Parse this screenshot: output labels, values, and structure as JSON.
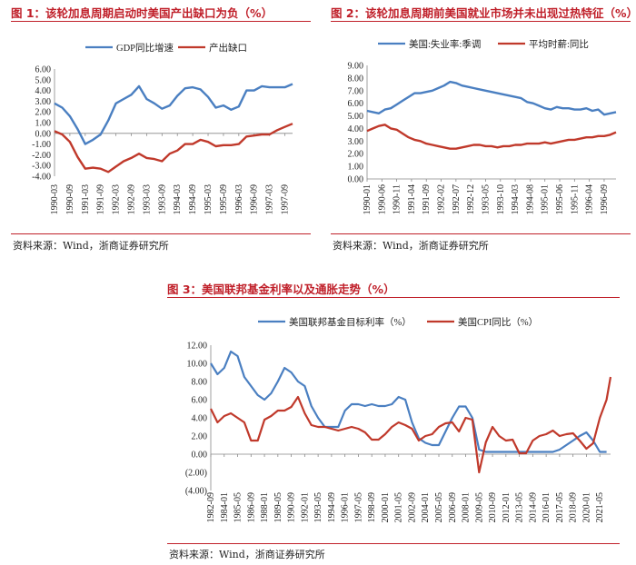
{
  "colors": {
    "accent_red": "#c0202a",
    "series_blue": "#4a7fc1",
    "series_red": "#c0392b"
  },
  "charts": [
    {
      "label": "图 1：该轮加息周期启动时美国产出缺口为负（%）",
      "source": "资料来源：Wind，浙商证券研究所"
    },
    {
      "label": "图 2：该轮加息周期前美国就业市场并未出现过热特征（%）",
      "source": "资料来源：Wind，浙商证券研究所"
    },
    {
      "label": "图 3：美国联邦基金利率以及通胀走势（%）",
      "source": "资料来源：Wind，浙商证券研究所"
    }
  ],
  "chart_data": [
    {
      "type": "line",
      "title": "图 1：该轮加息周期启动时美国产出缺口为负（%）",
      "categories": [
        "1990-03",
        "1990-09",
        "1991-03",
        "1991-09",
        "1992-03",
        "1992-09",
        "1993-03",
        "1993-09",
        "1994-03",
        "1994-09",
        "1995-03",
        "1995-09",
        "1996-03",
        "1996-09",
        "1997-03",
        "1997-09"
      ],
      "ylim": [
        -4,
        6
      ],
      "ytick_labels": [
        "6.00",
        "5.00",
        "4.00",
        "3.00",
        "2.00",
        "1.00",
        "0.00",
        "-1.00",
        "-2.00",
        "-3.00",
        "-4.00"
      ],
      "series": [
        {
          "name": "GDP同比增速",
          "color": "#4a7fc1",
          "x": [
            0,
            0.5,
            1,
            1.5,
            2,
            2.5,
            3,
            3.5,
            4,
            4.5,
            5,
            5.5,
            6,
            6.5,
            7,
            7.5,
            8,
            8.5,
            9,
            9.5,
            10,
            10.5,
            11,
            11.5,
            12,
            12.5,
            13,
            13.5,
            14,
            14.5,
            15,
            15.5
          ],
          "values": [
            2.8,
            2.4,
            1.6,
            0.4,
            -1.0,
            -0.6,
            -0.1,
            1.2,
            2.8,
            3.2,
            3.6,
            4.4,
            3.2,
            2.8,
            2.3,
            2.6,
            3.5,
            4.2,
            4.3,
            4.1,
            3.4,
            2.4,
            2.6,
            2.2,
            2.5,
            4.0,
            4.0,
            4.4,
            4.3,
            4.3,
            4.3,
            4.6
          ]
        },
        {
          "name": "产出缺口",
          "color": "#c0392b",
          "x": [
            0,
            0.5,
            1,
            1.5,
            2,
            2.5,
            3,
            3.5,
            4,
            4.5,
            5,
            5.5,
            6,
            6.5,
            7,
            7.5,
            8,
            8.5,
            9,
            9.5,
            10,
            10.5,
            11,
            11.5,
            12,
            12.5,
            13,
            13.5,
            14,
            14.5,
            15,
            15.5
          ],
          "values": [
            0.2,
            -0.1,
            -0.8,
            -2.2,
            -3.3,
            -3.2,
            -3.3,
            -3.6,
            -3.1,
            -2.6,
            -2.3,
            -1.9,
            -2.3,
            -2.4,
            -2.6,
            -1.9,
            -1.6,
            -1.0,
            -1.0,
            -0.6,
            -0.8,
            -1.2,
            -1.1,
            -1.1,
            -1.0,
            -0.3,
            -0.2,
            -0.1,
            -0.1,
            0.3,
            0.6,
            0.9
          ]
        }
      ]
    },
    {
      "type": "line",
      "title": "图 2：该轮加息周期前美国就业市场并未出现过热特征（%）",
      "categories": [
        "1990-01",
        "1990-06",
        "1990-11",
        "1991-04",
        "1991-09",
        "1992-02",
        "1992-07",
        "1992-12",
        "1993-05",
        "1993-10",
        "1994-03",
        "1994-08",
        "1995-01",
        "1995-06",
        "1995-11",
        "1996-04",
        "1996-09"
      ],
      "ylim": [
        0,
        9
      ],
      "ytick_labels": [
        "9.00",
        "8.00",
        "7.00",
        "6.00",
        "5.00",
        "4.00",
        "3.00",
        "2.00",
        "1.00",
        "0.00"
      ],
      "series": [
        {
          "name": "美国:失业率:季调",
          "color": "#4a7fc1",
          "x": [
            0,
            0.4,
            0.8,
            1.2,
            1.6,
            2,
            2.4,
            2.8,
            3.2,
            3.6,
            4,
            4.4,
            4.8,
            5.2,
            5.6,
            6,
            6.4,
            6.8,
            7.2,
            7.6,
            8,
            8.4,
            8.8,
            9.2,
            9.6,
            10,
            10.4,
            10.8,
            11.2,
            11.6,
            12,
            12.4,
            12.8,
            13.2,
            13.6,
            14,
            14.4,
            14.8,
            15.2,
            15.6,
            16,
            16.4,
            16.8
          ],
          "values": [
            5.4,
            5.3,
            5.2,
            5.5,
            5.6,
            5.9,
            6.2,
            6.5,
            6.8,
            6.8,
            6.9,
            7.0,
            7.2,
            7.4,
            7.7,
            7.6,
            7.4,
            7.3,
            7.2,
            7.1,
            7.0,
            6.9,
            6.8,
            6.7,
            6.6,
            6.5,
            6.4,
            6.1,
            6.0,
            5.8,
            5.6,
            5.5,
            5.7,
            5.6,
            5.6,
            5.5,
            5.5,
            5.6,
            5.4,
            5.5,
            5.1,
            5.2,
            5.3
          ]
        },
        {
          "name": "平均时薪:同比",
          "color": "#c0392b",
          "x": [
            0,
            0.4,
            0.8,
            1.2,
            1.6,
            2,
            2.4,
            2.8,
            3.2,
            3.6,
            4,
            4.4,
            4.8,
            5.2,
            5.6,
            6,
            6.4,
            6.8,
            7.2,
            7.6,
            8,
            8.4,
            8.8,
            9.2,
            9.6,
            10,
            10.4,
            10.8,
            11.2,
            11.6,
            12,
            12.4,
            12.8,
            13.2,
            13.6,
            14,
            14.4,
            14.8,
            15.2,
            15.6,
            16,
            16.4,
            16.8
          ],
          "values": [
            3.8,
            4.0,
            4.2,
            4.3,
            4.0,
            3.9,
            3.6,
            3.3,
            3.1,
            3.0,
            2.8,
            2.7,
            2.6,
            2.5,
            2.4,
            2.4,
            2.5,
            2.6,
            2.7,
            2.7,
            2.6,
            2.6,
            2.5,
            2.6,
            2.6,
            2.7,
            2.7,
            2.8,
            2.8,
            2.8,
            2.9,
            2.8,
            2.9,
            3.0,
            3.1,
            3.1,
            3.2,
            3.3,
            3.3,
            3.4,
            3.4,
            3.5,
            3.7
          ]
        }
      ]
    },
    {
      "type": "line",
      "title": "图 3：美国联邦基金利率以及通胀走势（%）",
      "categories": [
        "1982-09",
        "1984-01",
        "1985-05",
        "1986-09",
        "1988-01",
        "1989-05",
        "1990-09",
        "1992-01",
        "1993-05",
        "1994-09",
        "1996-01",
        "1997-05",
        "1998-09",
        "2000-01",
        "2001-05",
        "2002-09",
        "2004-01",
        "2005-05",
        "2006-09",
        "2008-01",
        "2009-05",
        "2010-09",
        "2012-01",
        "2013-05",
        "2014-09",
        "2016-01",
        "2017-05",
        "2018-09",
        "2020-01",
        "2021-05"
      ],
      "ylim": [
        -4,
        12
      ],
      "ytick_labels": [
        "12.00",
        "10.00",
        "8.00",
        "6.00",
        "4.00",
        "2.00",
        "0.00",
        "(2.00)",
        "(4.00)"
      ],
      "series": [
        {
          "name": "美国联邦基金目标利率（%）",
          "color": "#4a7fc1",
          "x": [
            0,
            0.5,
            1,
            1.5,
            2,
            2.5,
            3,
            3.5,
            4,
            4.5,
            5,
            5.5,
            6,
            6.5,
            7,
            7.5,
            8,
            8.5,
            9,
            9.5,
            10,
            10.5,
            11,
            11.5,
            12,
            12.5,
            13,
            13.5,
            14,
            14.5,
            15,
            15.5,
            16,
            16.5,
            17,
            17.5,
            18,
            18.5,
            19,
            19.5,
            20,
            20.5,
            21,
            21.5,
            22,
            22.5,
            23,
            23.5,
            24,
            24.5,
            25,
            25.5,
            26,
            26.5,
            27,
            27.5,
            28,
            28.5,
            29,
            29.5
          ],
          "values": [
            10.0,
            8.8,
            9.5,
            11.3,
            10.8,
            8.5,
            7.5,
            6.5,
            6.0,
            6.7,
            8.0,
            9.5,
            9.0,
            8.0,
            7.5,
            5.3,
            4.0,
            3.0,
            3.0,
            3.0,
            4.8,
            5.5,
            5.5,
            5.3,
            5.5,
            5.3,
            5.3,
            5.5,
            6.3,
            6.0,
            3.5,
            1.75,
            1.25,
            1.0,
            1.0,
            2.5,
            4.0,
            5.25,
            5.25,
            4.0,
            0.5,
            0.25,
            0.25,
            0.25,
            0.25,
            0.25,
            0.25,
            0.25,
            0.25,
            0.25,
            0.25,
            0.25,
            0.5,
            1.0,
            1.5,
            2.0,
            2.4,
            1.5,
            0.25,
            0.25
          ]
        },
        {
          "name": "美国CPI同比（%）",
          "color": "#c0392b",
          "x": [
            0,
            0.5,
            1,
            1.5,
            2,
            2.5,
            3,
            3.5,
            4,
            4.5,
            5,
            5.5,
            6,
            6.5,
            7,
            7.5,
            8,
            8.5,
            9,
            9.5,
            10,
            10.5,
            11,
            11.5,
            12,
            12.5,
            13,
            13.5,
            14,
            14.5,
            15,
            15.5,
            16,
            16.5,
            17,
            17.5,
            18,
            18.5,
            19,
            19.5,
            20,
            20.5,
            21,
            21.5,
            22,
            22.5,
            23,
            23.5,
            24,
            24.5,
            25,
            25.5,
            26,
            26.5,
            27,
            27.5,
            28,
            28.5,
            29,
            29.5,
            29.8
          ],
          "values": [
            5.0,
            3.5,
            4.2,
            4.5,
            4.0,
            3.5,
            1.5,
            1.5,
            3.8,
            4.2,
            4.8,
            4.8,
            5.2,
            6.3,
            4.5,
            3.2,
            3.0,
            3.0,
            2.8,
            2.6,
            2.8,
            3.0,
            2.8,
            2.4,
            1.6,
            1.6,
            2.2,
            3.0,
            3.5,
            3.2,
            2.8,
            1.5,
            2.0,
            2.2,
            3.0,
            3.4,
            3.5,
            2.5,
            4.0,
            3.8,
            -2.0,
            1.3,
            3.0,
            2.0,
            1.5,
            1.6,
            0.1,
            0.1,
            1.5,
            2.0,
            2.2,
            2.6,
            2.0,
            2.2,
            2.3,
            1.5,
            0.6,
            1.2,
            4.0,
            6.0,
            8.5
          ]
        }
      ]
    }
  ]
}
